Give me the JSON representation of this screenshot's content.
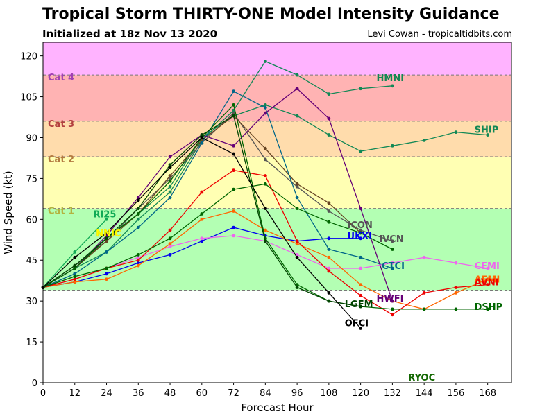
{
  "header": {
    "title": "Tropical Storm THIRTY-ONE Model Intensity Guidance",
    "subtitle": "Initialized at 18z Nov 13 2020",
    "credit": "Levi Cowan - tropicaltidbits.com"
  },
  "chart_data": {
    "type": "line",
    "xlabel": "Forecast Hour",
    "ylabel": "Wind Speed (kt)",
    "xlim": [
      0,
      177
    ],
    "ylim": [
      0,
      125
    ],
    "xticks": [
      0,
      12,
      24,
      36,
      48,
      60,
      72,
      84,
      96,
      108,
      120,
      132,
      144,
      156,
      168
    ],
    "yticks": [
      0,
      15,
      30,
      45,
      60,
      75,
      90,
      105,
      120
    ],
    "grid": false,
    "bands": [
      {
        "label": "",
        "from": 34,
        "to": 64,
        "color": "#b3ffb3"
      },
      {
        "label": "Cat 1",
        "from": 64,
        "to": 83,
        "color": "#ffffb3",
        "text_color": "#b3b340"
      },
      {
        "label": "Cat 2",
        "from": 83,
        "to": 96,
        "color": "#ffdcac",
        "text_color": "#b37a40"
      },
      {
        "label": "Cat 3",
        "from": 96,
        "to": 113,
        "color": "#ffb3b3",
        "text_color": "#b34040"
      },
      {
        "label": "Cat 4",
        "from": 113,
        "to": 125,
        "color": "#ffb3ff",
        "text_color": "#a040b3"
      }
    ],
    "series": [
      {
        "name": "HMNI",
        "color": "#118855",
        "x": [
          0,
          12,
          24,
          36,
          48,
          60,
          72,
          84,
          96,
          108,
          120,
          132
        ],
        "values": [
          35,
          42,
          48,
          60,
          70,
          89,
          100,
          118,
          113,
          106,
          108,
          109
        ],
        "label_x": 126,
        "label_y": 112
      },
      {
        "name": "SHIP",
        "color": "#118855",
        "x": [
          0,
          12,
          24,
          36,
          48,
          60,
          72,
          84,
          96,
          108,
          120,
          132,
          144,
          156,
          168
        ],
        "values": [
          35,
          42,
          53,
          62,
          72,
          90,
          98,
          102,
          98,
          91,
          85,
          87,
          89,
          92,
          91
        ],
        "label_x": 163,
        "label_y": 93
      },
      {
        "name": "RI25",
        "color": "#11aa55",
        "x": [
          0,
          12,
          24
        ],
        "values": [
          35,
          48,
          60
        ],
        "label_x": 19,
        "label_y": 62
      },
      {
        "name": "NNIC",
        "color": "#ffff00",
        "x": [],
        "values": [],
        "label_x": 20,
        "label_y": 55
      },
      {
        "name": "ICON",
        "color": "#555555",
        "x": [
          0,
          12,
          24,
          36,
          48,
          60,
          72,
          84,
          96,
          108,
          120,
          132
        ],
        "values": [
          35,
          43,
          52,
          64,
          75,
          88,
          99,
          82,
          72,
          63,
          56,
          52
        ],
        "label_x": 115,
        "label_y": 58
      },
      {
        "name": "",
        "color": "#664422",
        "x": [
          0,
          12,
          24,
          36,
          48,
          60,
          72,
          84,
          96,
          108,
          120
        ],
        "values": [
          35,
          42,
          52,
          62,
          76,
          89,
          98,
          86,
          73,
          66,
          55
        ],
        "label_x": 0,
        "label_y": 0
      },
      {
        "name": "IVCN",
        "color": "#555555",
        "x": [],
        "values": [],
        "label_x": 127,
        "label_y": 53
      },
      {
        "name": "UKXI",
        "color": "#0000ee",
        "x": [
          0,
          12,
          24,
          36,
          48,
          60,
          72,
          84,
          96,
          108,
          120
        ],
        "values": [
          35,
          37,
          40,
          44,
          47,
          52,
          57,
          54,
          52,
          53,
          53
        ],
        "label_x": 115,
        "label_y": 54
      },
      {
        "name": "CTCI",
        "color": "#006688",
        "x": [
          0,
          12,
          24,
          36,
          48,
          60,
          72,
          84,
          96,
          108,
          120,
          132
        ],
        "values": [
          35,
          40,
          48,
          57,
          68,
          88,
          107,
          101,
          68,
          49,
          46,
          42
        ],
        "label_x": 128,
        "label_y": 43
      },
      {
        "name": "CEMI",
        "color": "#ee66ee",
        "x": [
          0,
          12,
          24,
          36,
          48,
          60,
          72,
          84,
          96,
          108,
          120,
          132,
          144,
          156,
          168
        ],
        "values": [
          35,
          38,
          42,
          46,
          50,
          53,
          54,
          52,
          47,
          42,
          42,
          44,
          46,
          44,
          42
        ],
        "label_x": 163,
        "label_y": 43
      },
      {
        "name": "AEMI",
        "color": "#ff6600",
        "x": [
          0,
          12,
          24,
          36,
          48,
          60,
          72,
          84,
          96,
          108,
          120,
          132,
          144,
          156,
          168
        ],
        "values": [
          35,
          37,
          38,
          43,
          51,
          60,
          63,
          56,
          51,
          46,
          36,
          30,
          27,
          33,
          38
        ],
        "label_x": 163,
        "label_y": 38
      },
      {
        "name": "AVNI",
        "color": "#ee0000",
        "x": [
          0,
          12,
          24,
          36,
          48,
          60,
          72,
          84,
          96,
          108,
          120,
          132,
          144,
          156,
          168
        ],
        "values": [
          35,
          38,
          42,
          45,
          56,
          70,
          78,
          76,
          52,
          41,
          32,
          25,
          33,
          35,
          36
        ],
        "label_x": 163,
        "label_y": 37
      },
      {
        "name": "HWFI",
        "color": "#660077",
        "x": [
          0,
          12,
          24,
          36,
          48,
          60,
          72,
          84,
          96,
          108,
          120,
          132
        ],
        "values": [
          35,
          42,
          54,
          68,
          83,
          91,
          87,
          99,
          108,
          97,
          64,
          30
        ],
        "label_x": 126,
        "label_y": 31
      },
      {
        "name": "DSHP",
        "color": "#006600",
        "x": [
          0,
          12,
          24,
          36,
          48,
          60,
          72,
          84,
          96,
          108,
          120,
          132,
          144,
          156,
          168
        ],
        "values": [
          35,
          42,
          53,
          62,
          74,
          90,
          102,
          53,
          36,
          30,
          28,
          27,
          27,
          27,
          27
        ],
        "label_x": 163,
        "label_y": 28
      },
      {
        "name": "LGEM",
        "color": "#004400",
        "x": [
          0,
          12,
          24,
          36,
          48,
          60,
          72,
          84,
          96,
          108,
          120
        ],
        "values": [
          35,
          43,
          53,
          64,
          80,
          91,
          98,
          52,
          35,
          30,
          28
        ],
        "label_x": 114,
        "label_y": 29
      },
      {
        "name": "",
        "color": "#006600",
        "x": [
          0,
          12,
          24,
          36,
          48,
          60,
          72,
          84,
          96,
          108,
          120,
          132
        ],
        "values": [
          35,
          39,
          42,
          47,
          53,
          62,
          71,
          73,
          64,
          59,
          55,
          49
        ],
        "label_x": 0,
        "label_y": 0
      },
      {
        "name": "OFCI",
        "color": "#000000",
        "x": [
          0,
          12,
          24,
          36,
          48,
          60,
          72,
          84,
          96,
          108,
          120
        ],
        "values": [
          35,
          46,
          55,
          67,
          79,
          90,
          84,
          64,
          46,
          33,
          20
        ],
        "label_x": 114,
        "label_y": 22
      },
      {
        "name": "RYOC",
        "color": "#116600",
        "x": [],
        "values": [],
        "label_x": 138,
        "label_y": 2
      }
    ]
  }
}
